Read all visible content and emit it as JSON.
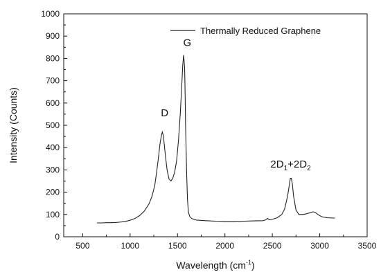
{
  "chart_data": {
    "type": "line",
    "xlabel": "Wavelength (cm",
    "xlabel_sup": "-1",
    "xlabel_close": ")",
    "ylabel": "Intensity (Counts)",
    "xlim": [
      300,
      3500
    ],
    "ylim": [
      0,
      1000
    ],
    "xticks": [
      500,
      1000,
      1500,
      2000,
      2500,
      3000,
      3500
    ],
    "yticks": [
      0,
      100,
      200,
      300,
      400,
      500,
      600,
      700,
      800,
      900,
      1000
    ],
    "grid": false,
    "legend_position": "top-right",
    "line_color": "#222222",
    "series": [
      {
        "name": "Thermally Reduced Graphene",
        "x": [
          650,
          700,
          750,
          800,
          850,
          900,
          950,
          1000,
          1050,
          1100,
          1150,
          1200,
          1230,
          1260,
          1280,
          1300,
          1315,
          1330,
          1340,
          1350,
          1360,
          1375,
          1390,
          1410,
          1430,
          1450,
          1470,
          1490,
          1510,
          1530,
          1545,
          1555,
          1565,
          1575,
          1580,
          1585,
          1595,
          1605,
          1615,
          1630,
          1650,
          1700,
          1800,
          1900,
          2000,
          2100,
          2200,
          2300,
          2400,
          2430,
          2450,
          2470,
          2500,
          2550,
          2600,
          2630,
          2660,
          2680,
          2690,
          2700,
          2710,
          2725,
          2750,
          2780,
          2820,
          2860,
          2900,
          2930,
          2950,
          2980,
          3020,
          3080,
          3160
        ],
        "y": [
          62,
          62,
          63,
          63,
          64,
          66,
          69,
          74,
          82,
          95,
          115,
          148,
          180,
          230,
          290,
          360,
          415,
          455,
          470,
          455,
          415,
          355,
          300,
          260,
          250,
          262,
          290,
          340,
          430,
          560,
          680,
          770,
          815,
          760,
          650,
          500,
          300,
          170,
          110,
          90,
          82,
          75,
          72,
          70,
          69,
          69,
          70,
          71,
          72,
          76,
          82,
          76,
          78,
          85,
          100,
          125,
          180,
          235,
          262,
          262,
          240,
          180,
          120,
          100,
          100,
          103,
          108,
          112,
          110,
          100,
          90,
          85,
          84
        ]
      }
    ],
    "annotations": [
      {
        "text": "D",
        "x": 1325,
        "y": 540
      },
      {
        "text": "G",
        "x": 1560,
        "y": 855
      },
      {
        "text": "2D",
        "sub1": "1",
        "plus": "+2D",
        "sub2": "2",
        "x": 2480,
        "y": 310
      }
    ]
  }
}
